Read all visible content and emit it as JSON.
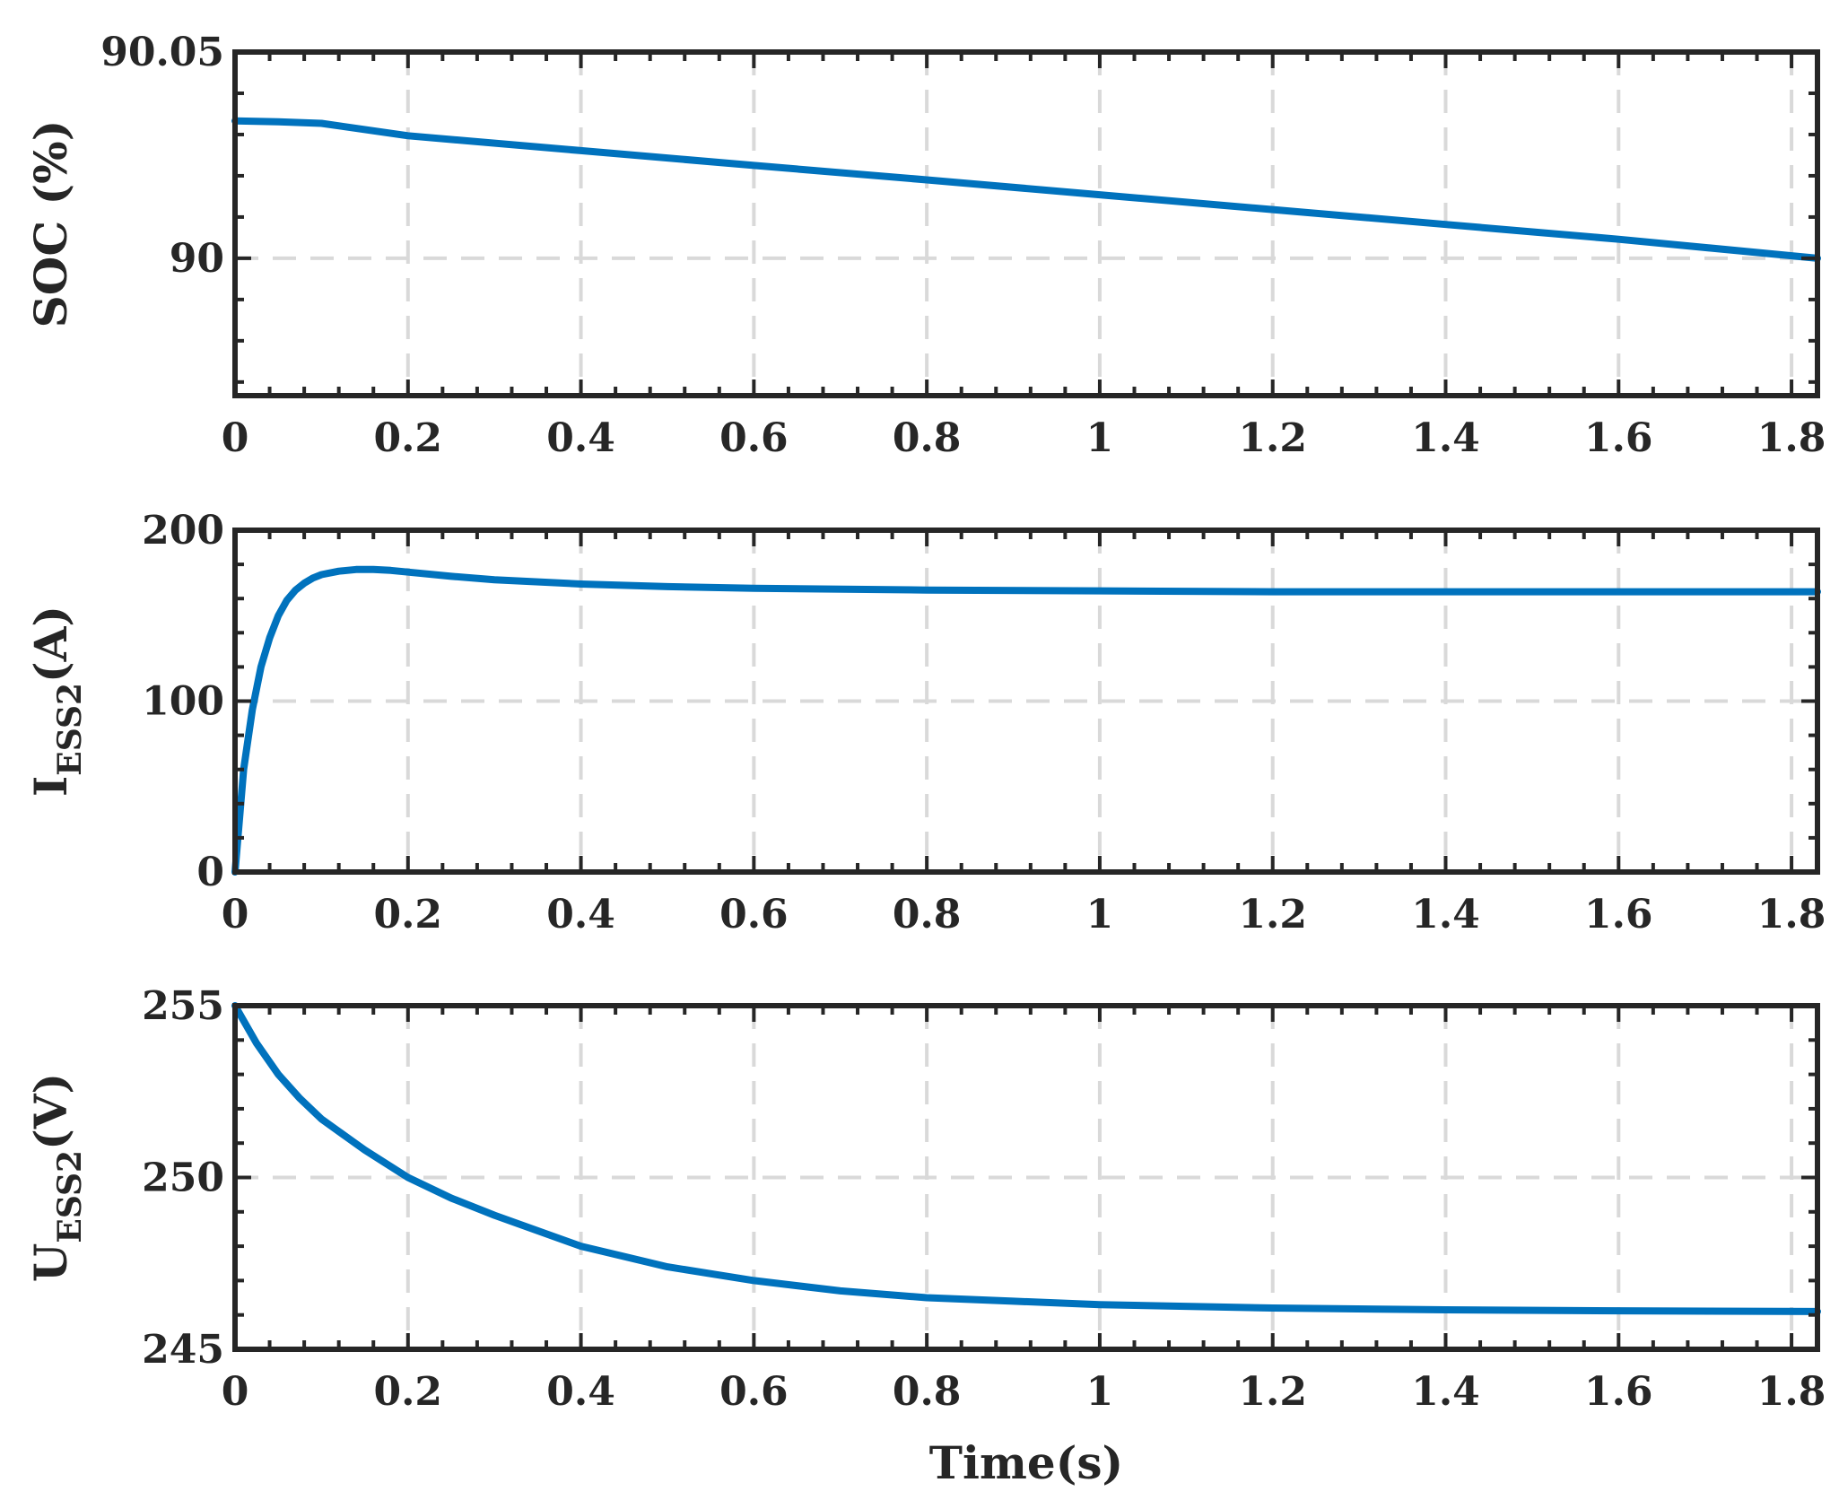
{
  "chart_data": [
    {
      "type": "line",
      "xlabel": "",
      "ylabel": "SOC (%)",
      "xlim": [
        0,
        1.83
      ],
      "ylim": [
        89.9667,
        90.05
      ],
      "xticks": [
        0,
        0.2,
        0.4,
        0.6,
        0.8,
        1,
        1.2,
        1.4,
        1.6,
        1.8
      ],
      "xtick_labels": [
        "0",
        "0.2",
        "0.4",
        "0.6",
        "0.8",
        "1",
        "1.2",
        "1.4",
        "1.6",
        "1.8"
      ],
      "yticks": [
        90,
        90.05
      ],
      "ytick_labels": [
        "90",
        "90.05"
      ],
      "grid": true,
      "series": [
        {
          "color": "#0072BD",
          "x": [
            0,
            0.05,
            0.1,
            0.2,
            0.4,
            0.6,
            0.8,
            1.0,
            1.2,
            1.4,
            1.6,
            1.83
          ],
          "y": [
            90.0333,
            90.0331,
            90.0327,
            90.0297,
            90.0261,
            90.0225,
            90.019,
            90.0154,
            90.0118,
            90.0082,
            90.0046,
            90.0
          ]
        }
      ]
    },
    {
      "type": "line",
      "xlabel": "",
      "ylabel": "I",
      "ylabel_sub": "ESS2",
      "ylabel_suffix": "(A)",
      "xlim": [
        0,
        1.83
      ],
      "ylim": [
        0,
        200
      ],
      "xticks": [
        0,
        0.2,
        0.4,
        0.6,
        0.8,
        1,
        1.2,
        1.4,
        1.6,
        1.8
      ],
      "xtick_labels": [
        "0",
        "0.2",
        "0.4",
        "0.6",
        "0.8",
        "1",
        "1.2",
        "1.4",
        "1.6",
        "1.8"
      ],
      "yticks": [
        0,
        100,
        200
      ],
      "ytick_labels": [
        "0",
        "100",
        "200"
      ],
      "grid": true,
      "series": [
        {
          "color": "#0072BD",
          "x": [
            0,
            0.01,
            0.02,
            0.03,
            0.04,
            0.05,
            0.06,
            0.07,
            0.08,
            0.09,
            0.1,
            0.12,
            0.14,
            0.16,
            0.18,
            0.2,
            0.25,
            0.3,
            0.4,
            0.5,
            0.6,
            0.8,
            1.0,
            1.2,
            1.4,
            1.6,
            1.83
          ],
          "y": [
            0,
            60,
            95,
            120,
            137,
            150,
            159,
            165,
            169,
            172,
            174,
            176,
            177,
            177,
            176.5,
            175.5,
            173,
            171,
            168.5,
            167,
            166,
            165,
            164.5,
            164,
            164,
            164,
            164
          ]
        }
      ]
    },
    {
      "type": "line",
      "xlabel": "Time(s)",
      "ylabel": "U",
      "ylabel_sub": "ESS2",
      "ylabel_suffix": "(V)",
      "xlim": [
        0,
        1.83
      ],
      "ylim": [
        245,
        255
      ],
      "xticks": [
        0,
        0.2,
        0.4,
        0.6,
        0.8,
        1,
        1.2,
        1.4,
        1.6,
        1.8
      ],
      "xtick_labels": [
        "0",
        "0.2",
        "0.4",
        "0.6",
        "0.8",
        "1",
        "1.2",
        "1.4",
        "1.6",
        "1.8"
      ],
      "yticks": [
        245,
        250,
        255
      ],
      "ytick_labels": [
        "245",
        "250",
        "255"
      ],
      "grid": true,
      "series": [
        {
          "color": "#0072BD",
          "x": [
            0,
            0.025,
            0.05,
            0.075,
            0.1,
            0.15,
            0.2,
            0.25,
            0.3,
            0.4,
            0.5,
            0.6,
            0.7,
            0.8,
            0.9,
            1.0,
            1.2,
            1.4,
            1.6,
            1.83
          ],
          "y": [
            255,
            253.9,
            253.0,
            252.3,
            251.7,
            250.8,
            250.0,
            249.4,
            248.9,
            248.0,
            247.4,
            247.0,
            246.7,
            246.5,
            246.4,
            246.3,
            246.2,
            246.15,
            246.12,
            246.1
          ]
        }
      ]
    }
  ]
}
